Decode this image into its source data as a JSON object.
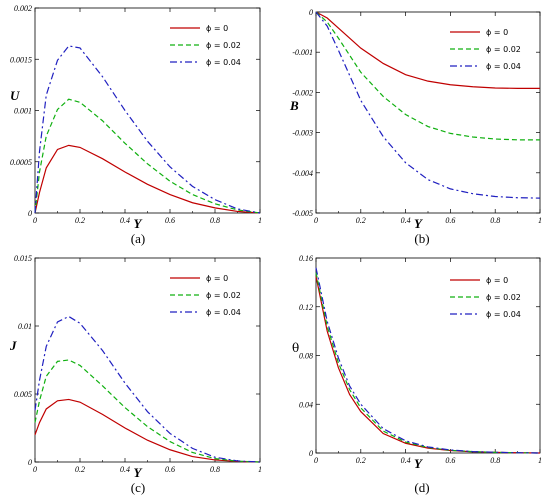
{
  "chart_data": [
    {
      "type": "line",
      "caption": "(a)",
      "ylabel": "U",
      "xlabel": "Y",
      "xlim": [
        0,
        1
      ],
      "ylim": [
        0,
        0.002
      ],
      "xticks": [
        0,
        0.2,
        0.4,
        0.6,
        0.8,
        1
      ],
      "xtick_labels": [
        "0",
        "0.2",
        "0.4",
        "0.6",
        "0.8",
        "1"
      ],
      "yticks": [
        0,
        0.0005,
        0.001,
        0.0015,
        0.002
      ],
      "ytick_labels": [
        "0",
        "0.0005",
        "0.001",
        "0.0015",
        "0.002"
      ],
      "legend_position": "top-right",
      "series": [
        {
          "name": "ϕ = 0",
          "color": "#c00000",
          "dash": "solid",
          "x": [
            0,
            0.02,
            0.05,
            0.1,
            0.15,
            0.2,
            0.3,
            0.4,
            0.5,
            0.6,
            0.7,
            0.8,
            0.9,
            1.0
          ],
          "y": [
            0,
            0.0002,
            0.00044,
            0.00062,
            0.00066,
            0.00064,
            0.00053,
            0.0004,
            0.00028,
            0.00018,
            0.0001,
            5e-05,
            1.5e-05,
            0
          ]
        },
        {
          "name": "ϕ = 0.02",
          "color": "#10b010",
          "dash": "dashed",
          "x": [
            0,
            0.02,
            0.05,
            0.1,
            0.15,
            0.2,
            0.3,
            0.4,
            0.5,
            0.6,
            0.7,
            0.8,
            0.9,
            1.0
          ],
          "y": [
            0,
            0.0004,
            0.00075,
            0.00101,
            0.00111,
            0.00108,
            0.0009,
            0.00068,
            0.00048,
            0.00031,
            0.00018,
            9e-05,
            3e-05,
            0
          ]
        },
        {
          "name": "ϕ = 0.04",
          "color": "#2020c0",
          "dash": "dashdot",
          "x": [
            0,
            0.02,
            0.05,
            0.1,
            0.15,
            0.2,
            0.3,
            0.4,
            0.5,
            0.6,
            0.7,
            0.8,
            0.9,
            1.0
          ],
          "y": [
            0,
            0.0006,
            0.00115,
            0.00149,
            0.00163,
            0.00161,
            0.00133,
            0.001,
            0.0007,
            0.00045,
            0.00026,
            0.00013,
            4e-05,
            0
          ]
        }
      ]
    },
    {
      "type": "line",
      "caption": "(b)",
      "ylabel": "B",
      "xlabel": "Y",
      "xlim": [
        0,
        1
      ],
      "ylim": [
        -0.005,
        0
      ],
      "xticks": [
        0,
        0.2,
        0.4,
        0.6,
        0.8,
        1
      ],
      "xtick_labels": [
        "0",
        "0.2",
        "0.4",
        "0.6",
        "0.8",
        "1"
      ],
      "yticks": [
        -0.005,
        -0.004,
        -0.003,
        -0.002,
        -0.001,
        0
      ],
      "ytick_labels": [
        "-0.005",
        "-0.004",
        "-0.003",
        "-0.002",
        "-0.001",
        "0"
      ],
      "legend_position": "top-right",
      "series": [
        {
          "name": "ϕ = 0",
          "color": "#c00000",
          "dash": "solid",
          "x": [
            0,
            0.05,
            0.1,
            0.2,
            0.3,
            0.4,
            0.5,
            0.6,
            0.7,
            0.8,
            0.9,
            1.0
          ],
          "y": [
            0,
            -0.00015,
            -0.0004,
            -0.0009,
            -0.00128,
            -0.00156,
            -0.00172,
            -0.00181,
            -0.00186,
            -0.00189,
            -0.0019,
            -0.0019
          ]
        },
        {
          "name": "ϕ = 0.02",
          "color": "#10b010",
          "dash": "dashed",
          "x": [
            0,
            0.05,
            0.1,
            0.2,
            0.3,
            0.4,
            0.5,
            0.6,
            0.7,
            0.8,
            0.9,
            1.0
          ],
          "y": [
            0,
            -0.00025,
            -0.00065,
            -0.0015,
            -0.0021,
            -0.00255,
            -0.00285,
            -0.00302,
            -0.00311,
            -0.00316,
            -0.00318,
            -0.00318
          ]
        },
        {
          "name": "ϕ = 0.04",
          "color": "#2020c0",
          "dash": "dashdot",
          "x": [
            0,
            0.05,
            0.1,
            0.2,
            0.3,
            0.4,
            0.5,
            0.6,
            0.7,
            0.8,
            0.9,
            1.0
          ],
          "y": [
            0,
            -0.00035,
            -0.00095,
            -0.0022,
            -0.0031,
            -0.00375,
            -0.00417,
            -0.0044,
            -0.00452,
            -0.00459,
            -0.00462,
            -0.00463
          ]
        }
      ]
    },
    {
      "type": "line",
      "caption": "(c)",
      "ylabel": "J",
      "xlabel": "Y",
      "xlim": [
        0,
        1
      ],
      "ylim": [
        0,
        0.015
      ],
      "xticks": [
        0,
        0.2,
        0.4,
        0.6,
        0.8,
        1
      ],
      "xtick_labels": [
        "0",
        "0.2",
        "0.4",
        "0.6",
        "0.8",
        "1"
      ],
      "yticks": [
        0,
        0.005,
        0.01,
        0.015
      ],
      "ytick_labels": [
        "0",
        "0.005",
        "0.01",
        "0.015"
      ],
      "legend_position": "top-right",
      "series": [
        {
          "name": "ϕ = 0",
          "color": "#c00000",
          "dash": "solid",
          "x": [
            0,
            0.02,
            0.05,
            0.1,
            0.15,
            0.2,
            0.3,
            0.4,
            0.5,
            0.6,
            0.7,
            0.8,
            0.9,
            1.0
          ],
          "y": [
            0.002,
            0.0029,
            0.0039,
            0.0045,
            0.0046,
            0.0044,
            0.0035,
            0.0025,
            0.0016,
            0.0009,
            0.0004,
            0.00015,
            4e-05,
            0
          ]
        },
        {
          "name": "ϕ = 0.02",
          "color": "#10b010",
          "dash": "dashed",
          "x": [
            0,
            0.02,
            0.05,
            0.1,
            0.15,
            0.2,
            0.3,
            0.4,
            0.5,
            0.6,
            0.7,
            0.8,
            0.9,
            1.0
          ],
          "y": [
            0.0029,
            0.0045,
            0.0063,
            0.0074,
            0.0075,
            0.0071,
            0.0056,
            0.004,
            0.0026,
            0.0015,
            0.0007,
            0.00025,
            6e-05,
            0
          ]
        },
        {
          "name": "ϕ = 0.04",
          "color": "#2020c0",
          "dash": "dashdot",
          "x": [
            0,
            0.02,
            0.05,
            0.1,
            0.15,
            0.2,
            0.3,
            0.4,
            0.5,
            0.6,
            0.7,
            0.8,
            0.9,
            1.0
          ],
          "y": [
            0.0038,
            0.006,
            0.0085,
            0.0103,
            0.0107,
            0.0102,
            0.0082,
            0.0058,
            0.0037,
            0.0021,
            0.001,
            0.00035,
            8e-05,
            0
          ]
        }
      ]
    },
    {
      "type": "line",
      "caption": "(d)",
      "ylabel": "θ",
      "xlabel": "Y",
      "xlim": [
        0,
        1
      ],
      "ylim": [
        0,
        0.16
      ],
      "xticks": [
        0,
        0.2,
        0.4,
        0.6,
        0.8,
        1
      ],
      "xtick_labels": [
        "0",
        "0.2",
        "0.4",
        "0.6",
        "0.8",
        "1"
      ],
      "yticks": [
        0,
        0.04,
        0.08,
        0.12,
        0.16
      ],
      "ytick_labels": [
        "0",
        "0.04",
        "0.08",
        "0.12",
        "0.16"
      ],
      "legend_position": "top-right",
      "series": [
        {
          "name": "ϕ = 0",
          "color": "#c00000",
          "dash": "solid",
          "x": [
            0,
            0.05,
            0.1,
            0.15,
            0.2,
            0.3,
            0.4,
            0.5,
            0.6,
            0.7,
            0.8,
            0.9,
            1.0
          ],
          "y": [
            0.145,
            0.1,
            0.07,
            0.048,
            0.034,
            0.016,
            0.008,
            0.004,
            0.002,
            0.001,
            0.0005,
            0.0002,
            0
          ]
        },
        {
          "name": "ϕ = 0.02",
          "color": "#10b010",
          "dash": "dashed",
          "x": [
            0,
            0.05,
            0.1,
            0.15,
            0.2,
            0.3,
            0.4,
            0.5,
            0.6,
            0.7,
            0.8,
            0.9,
            1.0
          ],
          "y": [
            0.148,
            0.104,
            0.074,
            0.052,
            0.037,
            0.018,
            0.009,
            0.0045,
            0.0022,
            0.0011,
            0.0005,
            0.0002,
            0
          ]
        },
        {
          "name": "ϕ = 0.04",
          "color": "#2020c0",
          "dash": "dashdot",
          "x": [
            0,
            0.05,
            0.1,
            0.15,
            0.2,
            0.3,
            0.4,
            0.5,
            0.6,
            0.7,
            0.8,
            0.9,
            1.0
          ],
          "y": [
            0.152,
            0.108,
            0.078,
            0.055,
            0.04,
            0.02,
            0.01,
            0.005,
            0.0025,
            0.0012,
            0.0006,
            0.0002,
            0
          ]
        }
      ]
    }
  ]
}
